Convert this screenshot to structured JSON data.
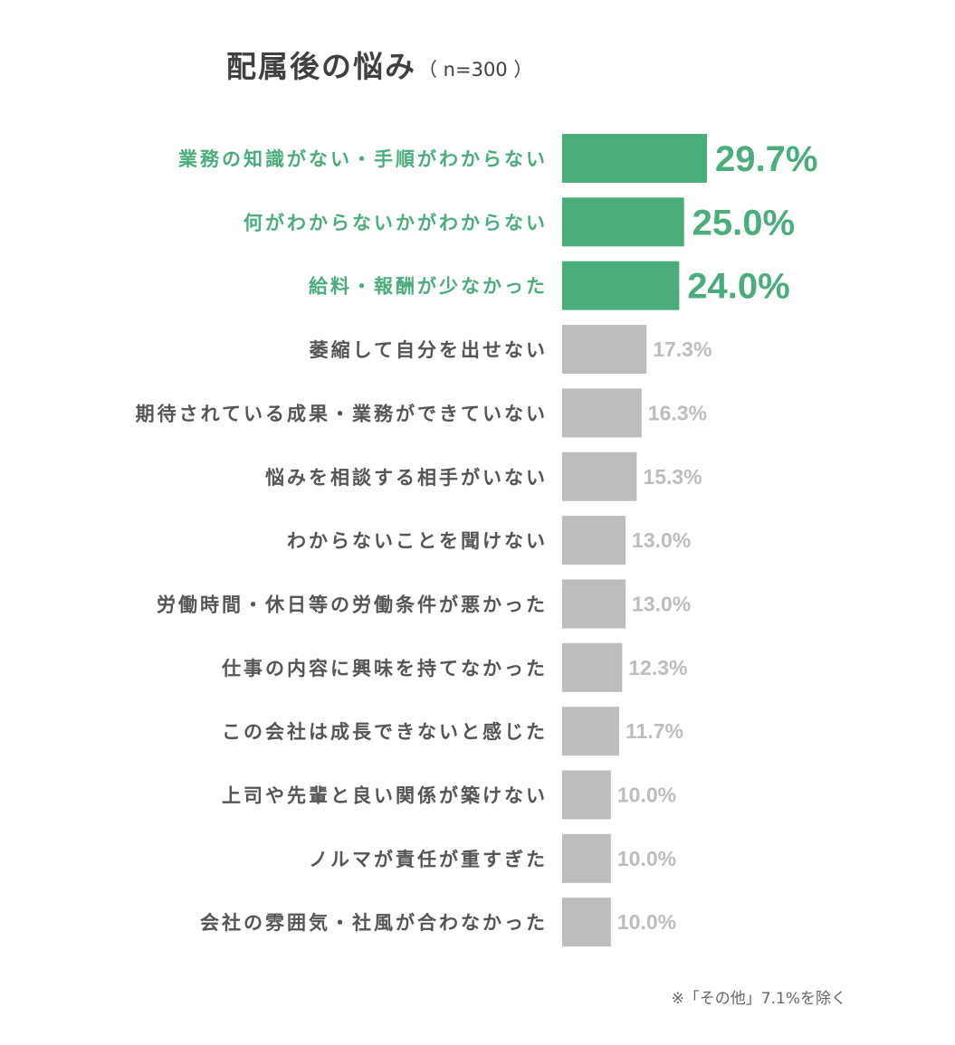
{
  "chart_data": {
    "type": "bar",
    "orientation": "horizontal",
    "title": "配属後の悩み",
    "subtitle": "（ n=300 ）",
    "categories": [
      "業務の知識がない・手順がわからない",
      "何がわからないかがわからない",
      "給料・報酬が少なかった",
      "萎縮して自分を出せない",
      "期待されている成果・業務ができていない",
      "悩みを相談する相手がいない",
      "わからないことを聞けない",
      "労働時間・休日等の労働条件が悪かった",
      "仕事の内容に興味を持てなかった",
      "この会社は成長できないと感じた",
      "上司や先輩と良い関係が築けない",
      "ノルマが責任が重すぎた",
      "会社の雰囲気・社風が合わなかった"
    ],
    "values": [
      29.7,
      25.0,
      24.0,
      17.3,
      16.3,
      15.3,
      13.0,
      13.0,
      12.3,
      11.7,
      10.0,
      10.0,
      10.0
    ],
    "value_labels": [
      "29.7%",
      "25.0%",
      "24.0%",
      "17.3%",
      "16.3%",
      "15.3%",
      "13.0%",
      "13.0%",
      "12.3%",
      "11.7%",
      "10.0%",
      "10.0%",
      "10.0%"
    ],
    "highlight_count": 3,
    "colors": {
      "highlight": "#4aad7c",
      "bar_normal": "#bdbdbd",
      "label_normal": "#555555",
      "value_normal": "#bdbdbd",
      "title": "#404040"
    },
    "xlabel": "",
    "ylabel": "",
    "grid": false,
    "legend": "none"
  },
  "footnote": "※「その他」7.1%を除く"
}
